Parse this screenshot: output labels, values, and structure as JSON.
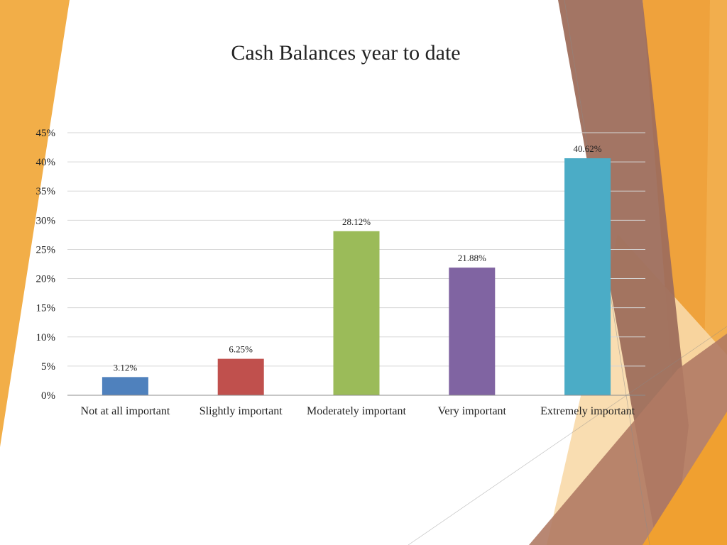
{
  "slide": {
    "theme_colors": {
      "orange": "#f2ae48",
      "orange_light": "#f8d9a8",
      "brown": "#a0705e",
      "brown_dark": "#8c6050"
    }
  },
  "chart_data": {
    "type": "bar",
    "title": "Cash Balances year to date",
    "categories": [
      "Not at all important",
      "Slightly important",
      "Moderately important",
      "Very important",
      "Extremely important"
    ],
    "values": [
      3.12,
      6.25,
      28.12,
      21.88,
      40.62
    ],
    "data_labels": [
      "3.12%",
      "6.25%",
      "28.12%",
      "21.88%",
      "40.62%"
    ],
    "colors": [
      "#4f81bd",
      "#c0504d",
      "#9bbb59",
      "#8064a2",
      "#4bacc6"
    ],
    "yticks": [
      "0%",
      "5%",
      "10%",
      "15%",
      "20%",
      "25%",
      "30%",
      "35%",
      "40%",
      "45%"
    ],
    "ylim": [
      0,
      45
    ],
    "grid": true,
    "legend": "none"
  }
}
